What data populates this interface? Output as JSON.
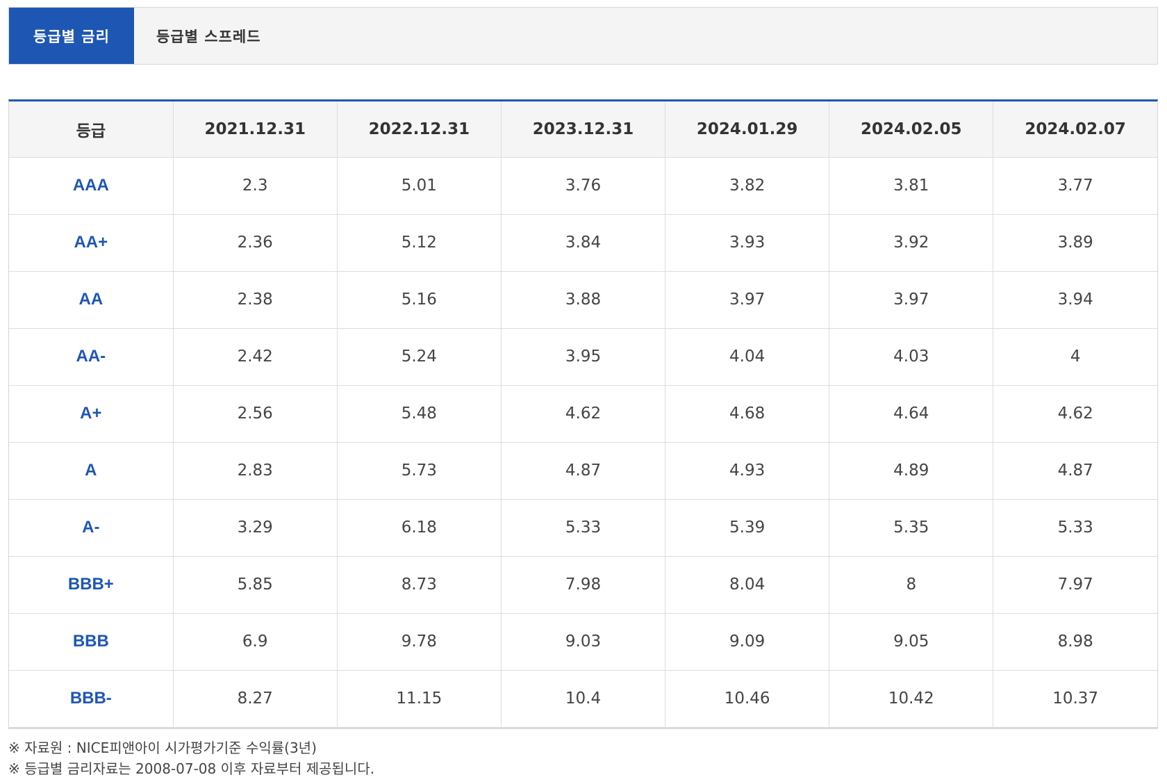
{
  "tabs": [
    {
      "label": "등급별 금리",
      "active": true
    },
    {
      "label": "등급별 스프레드",
      "active": false
    }
  ],
  "colors": {
    "accent": "#1e56b4",
    "header_bg": "#f5f5f5"
  },
  "table": {
    "headers": [
      "등급",
      "2021.12.31",
      "2022.12.31",
      "2023.12.31",
      "2024.01.29",
      "2024.02.05",
      "2024.02.07"
    ],
    "rows": [
      [
        "AAA",
        "2.3",
        "5.01",
        "3.76",
        "3.82",
        "3.81",
        "3.77"
      ],
      [
        "AA+",
        "2.36",
        "5.12",
        "3.84",
        "3.93",
        "3.92",
        "3.89"
      ],
      [
        "AA",
        "2.38",
        "5.16",
        "3.88",
        "3.97",
        "3.97",
        "3.94"
      ],
      [
        "AA-",
        "2.42",
        "5.24",
        "3.95",
        "4.04",
        "4.03",
        "4"
      ],
      [
        "A+",
        "2.56",
        "5.48",
        "4.62",
        "4.68",
        "4.64",
        "4.62"
      ],
      [
        "A",
        "2.83",
        "5.73",
        "4.87",
        "4.93",
        "4.89",
        "4.87"
      ],
      [
        "A-",
        "3.29",
        "6.18",
        "5.33",
        "5.39",
        "5.35",
        "5.33"
      ],
      [
        "BBB+",
        "5.85",
        "8.73",
        "7.98",
        "8.04",
        "8",
        "7.97"
      ],
      [
        "BBB",
        "6.9",
        "9.78",
        "9.03",
        "9.09",
        "9.05",
        "8.98"
      ],
      [
        "BBB-",
        "8.27",
        "11.15",
        "10.4",
        "10.46",
        "10.42",
        "10.37"
      ]
    ]
  },
  "notes": [
    "※ 자료원 : NICE피앤아이 시가평가기준 수익률(3년)",
    "※ 등급별 금리자료는 2008-07-08 이후 자료부터 제공됩니다."
  ]
}
